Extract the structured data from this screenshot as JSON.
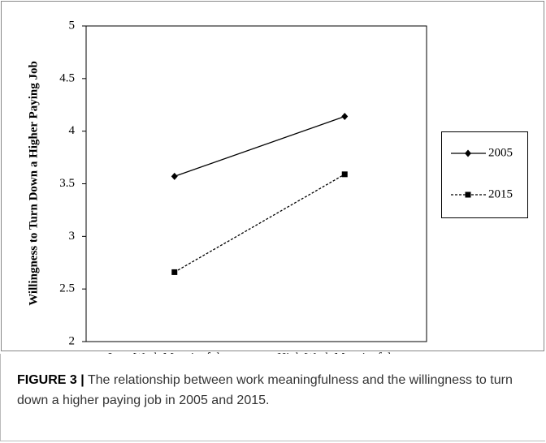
{
  "chart_data": {
    "type": "line",
    "y_label": "Willingness to Turn Down a Higher Paying Job",
    "categories": [
      "Low Work Meaningfulness",
      "High Work Meaningfulness"
    ],
    "series": [
      {
        "name": "2005",
        "color": "#000000",
        "line_style": "solid",
        "marker": "diamond",
        "values": [
          3.57,
          4.14
        ]
      },
      {
        "name": "2015",
        "color": "#000000",
        "line_style": "dashed",
        "marker": "square",
        "values": [
          2.66,
          3.59
        ]
      }
    ],
    "ylim": [
      2,
      5
    ],
    "yticks": [
      2,
      2.5,
      3,
      3.5,
      4,
      4.5,
      5
    ],
    "grid": false,
    "legend": "right"
  },
  "caption": {
    "label": "FIGURE 3 |",
    "text": "The relationship between work meaningfulness and the willingness to turn down a higher paying job in 2005 and 2015."
  }
}
